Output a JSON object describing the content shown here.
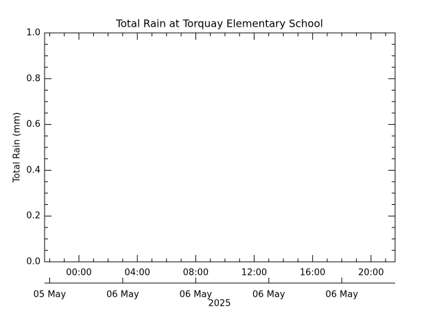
{
  "chart_data": {
    "type": "line",
    "title": "Total Rain at Torquay Elementary School",
    "y_label": "Total Rain (mm)",
    "x": [],
    "values": [],
    "color": "#000000",
    "ylim": [
      0,
      1
    ],
    "yticks": [
      {
        "value": 0,
        "label": "0.0"
      },
      0.2,
      0.4,
      0.6,
      0.8,
      {
        "value": 1,
        "label": "1.0"
      }
    ],
    "xlim": [
      -2.35,
      21.65
    ],
    "xticks": [
      {
        "value": 0,
        "label": "00:00"
      },
      {
        "value": 4,
        "label": "04:00"
      },
      {
        "value": 8,
        "label": "08:00"
      },
      {
        "value": 12,
        "label": "12:00"
      },
      {
        "value": 16,
        "label": "16:00"
      },
      {
        "value": 20,
        "label": "20:00"
      }
    ],
    "date_ticks": [
      {
        "value": -2,
        "label": "05 May"
      },
      {
        "value": 3,
        "label": "06 May"
      },
      {
        "value": 8,
        "label": "06 May"
      },
      {
        "value": 13,
        "label": "06 May"
      },
      {
        "value": 18,
        "label": "06 May"
      }
    ],
    "date_label": "2025",
    "grid": false
  }
}
